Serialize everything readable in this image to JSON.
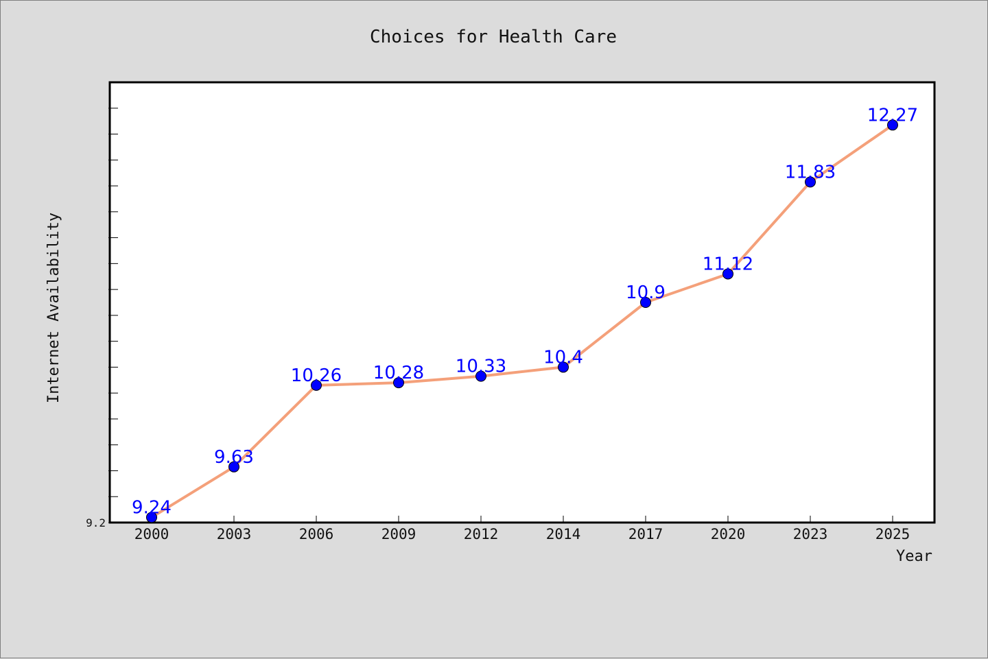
{
  "chart_data": {
    "type": "line",
    "title": "Choices for Health Care",
    "xlabel": "Year",
    "ylabel": "Internet Availability",
    "categories": [
      "2000",
      "2003",
      "2006",
      "2009",
      "2012",
      "2014",
      "2017",
      "2020",
      "2023",
      "2025"
    ],
    "series": [
      {
        "values": [
          9.24,
          9.63,
          10.26,
          10.28,
          10.33,
          10.4,
          10.9,
          11.12,
          11.83,
          12.27
        ],
        "line_color": "#f4a07a",
        "marker_color": "#0000ff"
      }
    ],
    "y_tick_labels": [
      "9.2"
    ],
    "ylim": [
      9.2,
      12.6
    ],
    "grid": false,
    "data_label_color": "#0000ff"
  }
}
